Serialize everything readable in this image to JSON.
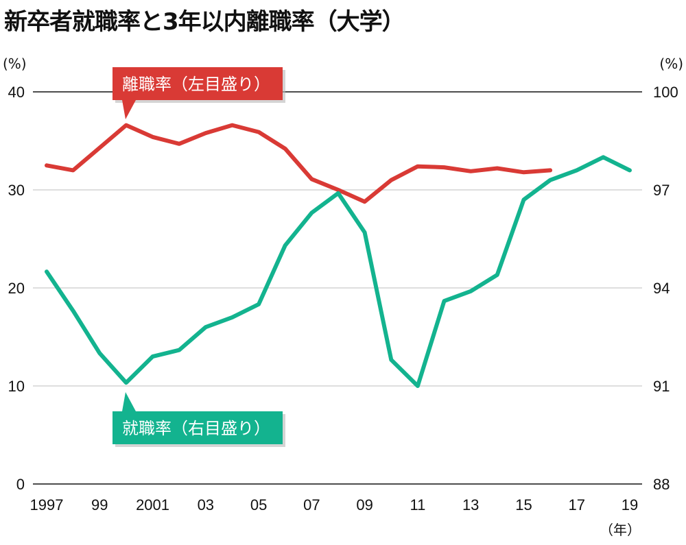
{
  "title": "新卒者就職率と3年以内離職率（大学）",
  "chart_data": {
    "type": "line",
    "title": "新卒者就職率と3年以内離職率（大学）",
    "x": [
      "1997",
      "1998",
      "1999",
      "2000",
      "2001",
      "2002",
      "2003",
      "2004",
      "2005",
      "2006",
      "2007",
      "2008",
      "2009",
      "2010",
      "2011",
      "2012",
      "2013",
      "2014",
      "2015",
      "2016",
      "2017",
      "2018",
      "2019"
    ],
    "x_tick_labels": [
      "1997",
      "99",
      "2001",
      "03",
      "05",
      "07",
      "09",
      "11",
      "13",
      "15",
      "17",
      "19"
    ],
    "x_unit": "（年）",
    "left_axis": {
      "unit": "(%)",
      "ylim": [
        0,
        40
      ],
      "ticks": [
        "0",
        "10",
        "20",
        "30",
        "40"
      ]
    },
    "right_axis": {
      "unit": "(%)",
      "ylim": [
        88,
        100
      ],
      "ticks": [
        "88",
        "91",
        "94",
        "97",
        "100"
      ]
    },
    "series": [
      {
        "name": "離職率（左目盛り）",
        "axis": "left",
        "color": "#d93a35",
        "values": [
          32.5,
          32.0,
          34.3,
          36.6,
          35.4,
          34.7,
          35.8,
          36.6,
          35.9,
          34.2,
          31.1,
          30.0,
          28.8,
          31.0,
          32.4,
          32.3,
          31.9,
          32.2,
          31.8,
          32.0,
          null,
          null,
          null
        ]
      },
      {
        "name": "就職率（右目盛り）",
        "axis": "right",
        "color": "#13b38f",
        "values": [
          94.5,
          93.3,
          92.0,
          91.1,
          91.9,
          92.1,
          92.8,
          93.1,
          93.5,
          95.3,
          96.3,
          96.9,
          95.7,
          91.8,
          91.0,
          93.6,
          93.9,
          94.4,
          96.7,
          97.3,
          97.6,
          98.0,
          97.6
        ]
      }
    ],
    "annotations": [
      {
        "text": "離職率（左目盛り）",
        "points_to": "2000",
        "series": "離職率（左目盛り）"
      },
      {
        "text": "就職率（右目盛り）",
        "points_to": "2000",
        "series": "就職率（右目盛り）"
      }
    ]
  }
}
